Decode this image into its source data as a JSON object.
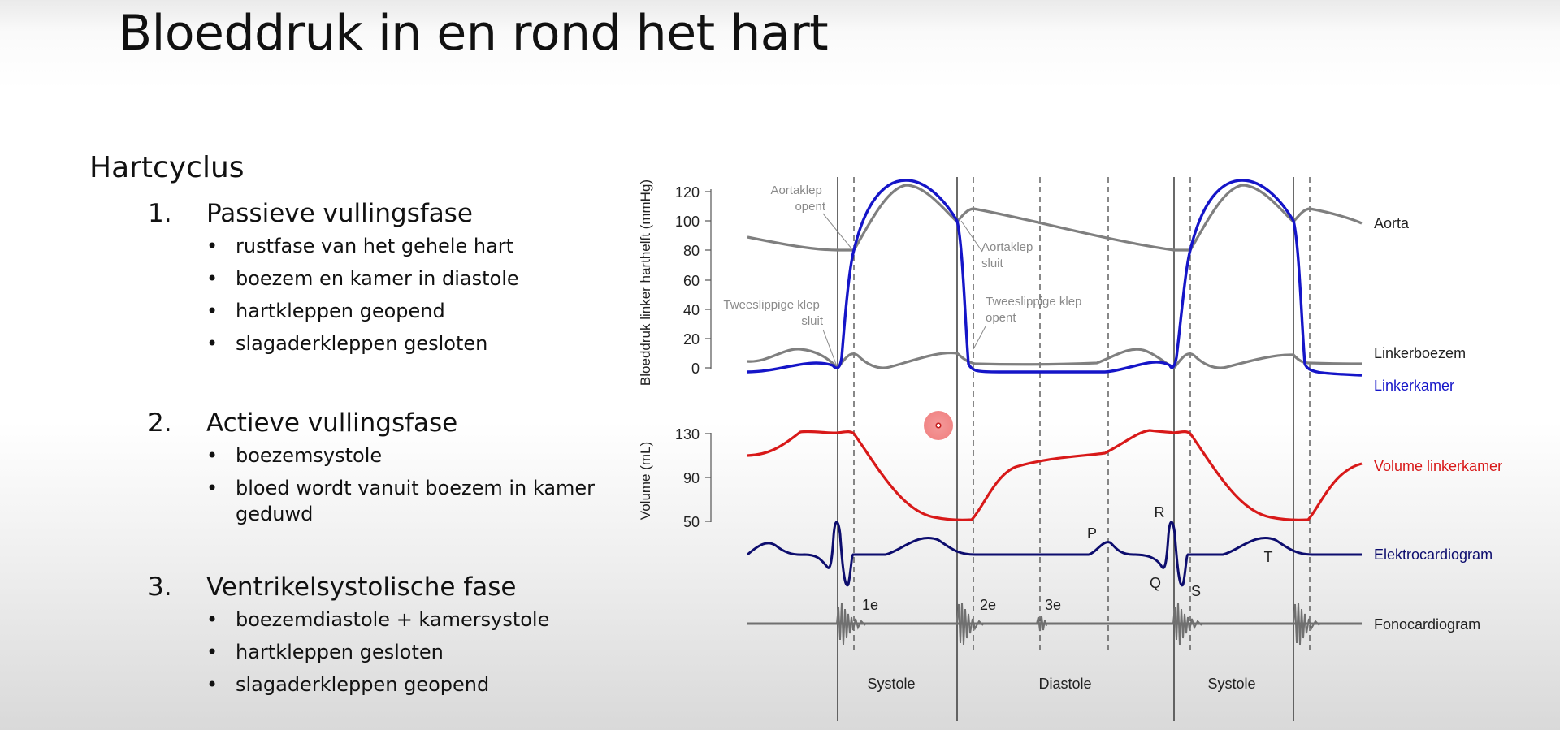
{
  "slide": {
    "title": "Bloeddruk in en rond het hart",
    "section": "Hartcyclus",
    "phases": [
      {
        "number": "1.",
        "title": "Passieve vullingsfase",
        "bullets": [
          "rustfase van het gehele hart",
          "boezem en kamer in diastole",
          "hartkleppen geopend",
          "slagaderkleppen gesloten"
        ]
      },
      {
        "number": "2.",
        "title": "Actieve vullingsfase",
        "bullets": [
          "boezemsystole",
          "bloed wordt vanuit boezem in kamer geduwd"
        ]
      },
      {
        "number": "3.",
        "title": "Ventrikelsystolische fase",
        "bullets": [
          "boezemdiastole + kamersystole",
          "hartkleppen gesloten",
          "slagaderkleppen geopend"
        ]
      }
    ]
  },
  "diagram": {
    "pressure_axis_label": "Bloeddruk linker harthelft (mmHg)",
    "pressure_ticks": [
      "120",
      "100",
      "80",
      "60",
      "40",
      "20",
      "0"
    ],
    "volume_axis_label": "Volume (mL)",
    "volume_ticks": [
      "130",
      "90",
      "50"
    ],
    "annotations": {
      "aortic_opens": [
        "Aortaklep",
        "opent"
      ],
      "aortic_closes": [
        "Aortaklep",
        "sluit"
      ],
      "mitral_closes": [
        "Tweeslippige klep",
        "sluit"
      ],
      "mitral_opens": [
        "Tweeslippige klep",
        "opent"
      ]
    },
    "curve_labels": {
      "aorta": "Aorta",
      "atrium": "Linkerboezem",
      "ventricle": "Linkerkamer",
      "volume": "Volume linkerkamer",
      "ecg": "Elektrocardiogram",
      "pcg": "Fonocardiogram"
    },
    "ecg_waves": {
      "p": "P",
      "q": "Q",
      "r": "R",
      "s": "S",
      "t": "T"
    },
    "heart_sounds": [
      "1e",
      "2e",
      "3e"
    ],
    "phases": [
      "Systole",
      "Diastole",
      "Systole"
    ],
    "colors": {
      "aorta": "#7f7f7f",
      "ventricle": "#1515c8",
      "volume": "#d81919",
      "ecg": "#0d0d6e",
      "pcg": "#707070",
      "ventricle_label": "#1515c8",
      "volume_label": "#d81919",
      "ecg_label": "#0d0d6e"
    }
  }
}
